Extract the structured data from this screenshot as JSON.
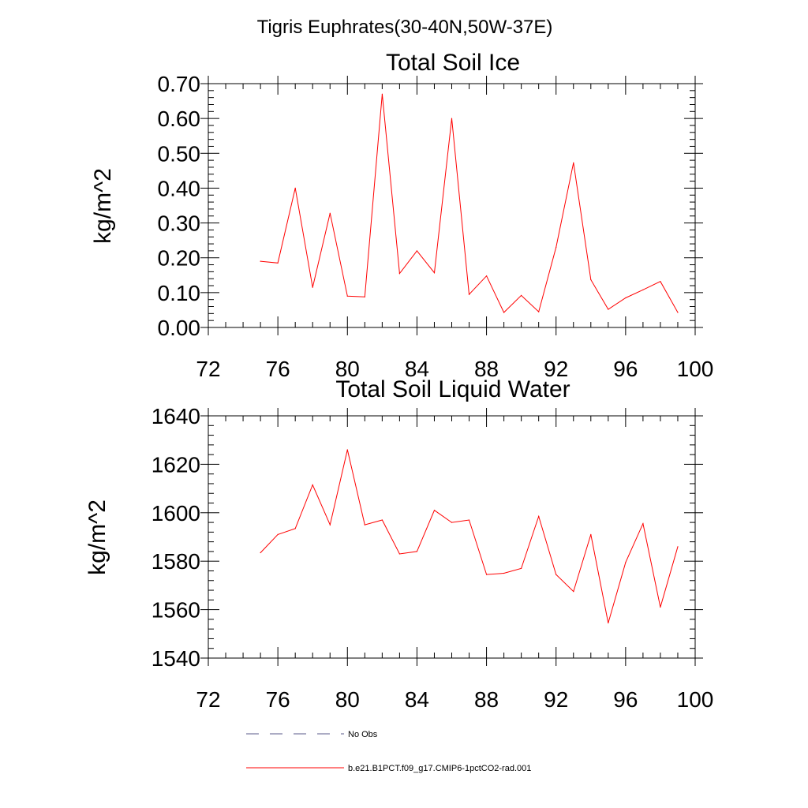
{
  "figure": {
    "suptitle": "Tigris Euphrates(30-40N,50W-37E)"
  },
  "chart_data": [
    {
      "type": "line",
      "title": "Total Soil Ice",
      "xlabel": "",
      "ylabel": "kg/m^2",
      "xlim": [
        72,
        100
      ],
      "ylim": [
        0,
        0.7
      ],
      "xticks": [
        "72",
        "76",
        "80",
        "84",
        "88",
        "92",
        "96",
        "100"
      ],
      "yticks": [
        "0.00",
        "0.10",
        "0.20",
        "0.30",
        "0.40",
        "0.50",
        "0.60",
        "0.70"
      ],
      "grid": false,
      "x": [
        75,
        76,
        77,
        78,
        79,
        80,
        81,
        82,
        83,
        84,
        85,
        86,
        87,
        88,
        89,
        90,
        91,
        92,
        93,
        94,
        95,
        96,
        97,
        98,
        99
      ],
      "series": [
        {
          "name": "b.e21.B1PCT.f09_g17.CMIP6-1pctCO2-rad.001",
          "color": "#ff0000",
          "values": [
            0.19,
            0.185,
            0.4,
            0.115,
            0.328,
            0.09,
            0.088,
            0.67,
            0.155,
            0.22,
            0.157,
            0.6,
            0.095,
            0.148,
            0.043,
            0.092,
            0.045,
            0.23,
            0.473,
            0.137,
            0.052,
            0.085,
            0.108,
            0.132,
            0.043
          ]
        }
      ]
    },
    {
      "type": "line",
      "title": "Total Soil Liquid Water",
      "xlabel": "",
      "ylabel": "kg/m^2",
      "xlim": [
        72,
        100
      ],
      "ylim": [
        1540,
        1640
      ],
      "xticks": [
        "72",
        "76",
        "80",
        "84",
        "88",
        "92",
        "96",
        "100"
      ],
      "yticks": [
        "1540",
        "1560",
        "1580",
        "1600",
        "1620",
        "1640"
      ],
      "grid": false,
      "x": [
        75,
        76,
        77,
        78,
        79,
        80,
        81,
        82,
        83,
        84,
        85,
        86,
        87,
        88,
        89,
        90,
        91,
        92,
        93,
        94,
        95,
        96,
        97,
        98,
        99
      ],
      "series": [
        {
          "name": "b.e21.B1PCT.f09_g17.CMIP6-1pctCO2-rad.001",
          "color": "#ff0000",
          "values": [
            1583.5,
            1591,
            1593.5,
            1611.5,
            1595,
            1626,
            1595,
            1597,
            1583,
            1584,
            1601,
            1596,
            1597,
            1574.5,
            1575,
            1577,
            1598.5,
            1574.5,
            1567.5,
            1591,
            1554.5,
            1579.5,
            1595.5,
            1561,
            1586
          ]
        }
      ]
    }
  ],
  "legend": {
    "placement": "bottom-left",
    "items": [
      {
        "label": "No Obs",
        "color": "#5a5a8a",
        "style": "dashed"
      },
      {
        "label": "b.e21.B1PCT.f09_g17.CMIP6-1pctCO2-rad.001",
        "color": "#ff0000",
        "style": "solid"
      }
    ]
  }
}
